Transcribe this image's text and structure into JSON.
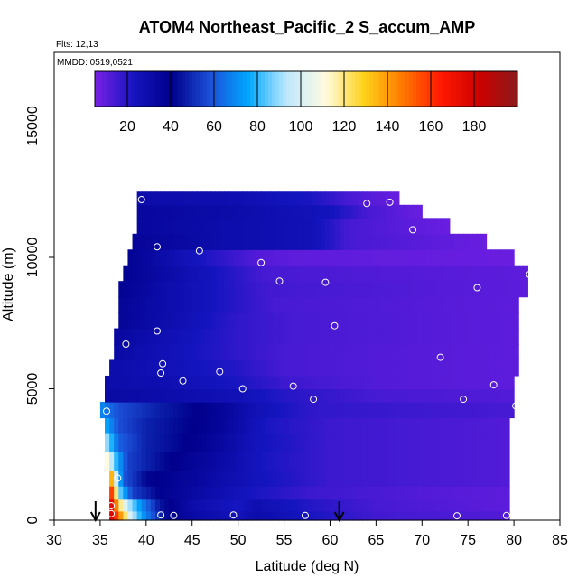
{
  "chart_data": {
    "type": "heatmap",
    "title": "ATOM4 Northeast_Pacific_2 S_accum_AMP",
    "flights_label": "Flts: 12,13",
    "dates_label": "MMDD: 0519,0521",
    "xlabel": "Latitude (deg N)",
    "ylabel": "Altitude (m)",
    "xlim": [
      30,
      85
    ],
    "ylim": [
      0,
      17800
    ],
    "x_ticks": [
      30,
      35,
      40,
      45,
      50,
      55,
      60,
      65,
      70,
      75,
      80,
      85
    ],
    "y_ticks": [
      0,
      5000,
      10000,
      15000
    ],
    "colorbar": {
      "min": 5,
      "max": 200,
      "ticks": [
        20,
        40,
        60,
        80,
        100,
        120,
        140,
        160,
        180
      ],
      "colors": [
        "#7a1fe6",
        "#1515c0",
        "#00008b",
        "#1c4fd8",
        "#00a8ff",
        "#bfe8ff",
        "#fffbe0",
        "#ffd21a",
        "#ff7a00",
        "#ff1a00",
        "#cc0000",
        "#8b1a1a"
      ]
    },
    "field_rows": [
      {
        "alt": [
          0,
          350
        ],
        "lat": [
          36,
          79.5
        ],
        "values": [
          [
            36,
            185
          ],
          [
            36.6,
            165
          ],
          [
            37.4,
            135
          ],
          [
            38.3,
            100
          ],
          [
            39.5,
            75
          ],
          [
            41,
            55
          ],
          [
            42.5,
            40
          ],
          [
            45,
            32
          ],
          [
            50,
            25
          ],
          [
            52,
            30
          ],
          [
            58,
            22
          ],
          [
            65,
            15
          ],
          [
            79.5,
            12
          ]
        ]
      },
      {
        "alt": [
          350,
          800
        ],
        "lat": [
          36,
          79.5
        ],
        "values": [
          [
            36,
            190
          ],
          [
            36.5,
            160
          ],
          [
            37.2,
            120
          ],
          [
            38,
            95
          ],
          [
            39.5,
            70
          ],
          [
            41.5,
            45
          ],
          [
            45,
            30
          ],
          [
            50,
            22
          ],
          [
            52,
            28
          ],
          [
            58,
            20
          ],
          [
            65,
            14
          ],
          [
            79.5,
            10
          ]
        ]
      },
      {
        "alt": [
          800,
          1300
        ],
        "lat": [
          36,
          79.5
        ],
        "values": [
          [
            36,
            175
          ],
          [
            36.5,
            140
          ],
          [
            37.2,
            85
          ],
          [
            38.5,
            55
          ],
          [
            42,
            38
          ],
          [
            48,
            28
          ],
          [
            52,
            22
          ],
          [
            58,
            16
          ],
          [
            70,
            12
          ],
          [
            79.5,
            10
          ]
        ]
      },
      {
        "alt": [
          1300,
          1900
        ],
        "lat": [
          36,
          79.5
        ],
        "values": [
          [
            36,
            160
          ],
          [
            36.5,
            110
          ],
          [
            37.5,
            60
          ],
          [
            40,
            42
          ],
          [
            48,
            30
          ],
          [
            52,
            24
          ],
          [
            60,
            16
          ],
          [
            79.5,
            12
          ]
        ]
      },
      {
        "alt": [
          1900,
          2600
        ],
        "lat": [
          35.5,
          79.5
        ],
        "values": [
          [
            35.5,
            120
          ],
          [
            36.5,
            85
          ],
          [
            38,
            55
          ],
          [
            42,
            42
          ],
          [
            50,
            28
          ],
          [
            53,
            22
          ],
          [
            60,
            16
          ],
          [
            79.5,
            12
          ]
        ]
      },
      {
        "alt": [
          2600,
          3300
        ],
        "lat": [
          35.5,
          79.5
        ],
        "values": [
          [
            35.5,
            95
          ],
          [
            37,
            62
          ],
          [
            40,
            48
          ],
          [
            47,
            36
          ],
          [
            52,
            24
          ],
          [
            60,
            16
          ],
          [
            79.5,
            12
          ]
        ]
      },
      {
        "alt": [
          3300,
          3900
        ],
        "lat": [
          35.5,
          79.5
        ],
        "values": [
          [
            35.5,
            78
          ],
          [
            37,
            58
          ],
          [
            40,
            48
          ],
          [
            48,
            36
          ],
          [
            53,
            22
          ],
          [
            60,
            16
          ],
          [
            79.5,
            12
          ]
        ]
      },
      {
        "alt": [
          3900,
          4500
        ],
        "lat": [
          35,
          80
        ],
        "values": [
          [
            35,
            70
          ],
          [
            37,
            58
          ],
          [
            41,
            48
          ],
          [
            48,
            36
          ],
          [
            52,
            26
          ],
          [
            58,
            18
          ],
          [
            80,
            14
          ]
        ]
      },
      {
        "alt": [
          4500,
          5000
        ],
        "lat": [
          35.5,
          80
        ],
        "values": [
          [
            35.5,
            32
          ],
          [
            42,
            30
          ],
          [
            50,
            26
          ],
          [
            55,
            20
          ],
          [
            65,
            14
          ],
          [
            80,
            12
          ]
        ]
      },
      {
        "alt": [
          5000,
          5500
        ],
        "lat": [
          35.5,
          80
        ],
        "values": [
          [
            35.5,
            30
          ],
          [
            42,
            28
          ],
          [
            50,
            22
          ],
          [
            55,
            16
          ],
          [
            65,
            12
          ],
          [
            80,
            10
          ]
        ]
      },
      {
        "alt": [
          5500,
          6100
        ],
        "lat": [
          36,
          80.5
        ],
        "values": [
          [
            36,
            30
          ],
          [
            42,
            26
          ],
          [
            50,
            20
          ],
          [
            55,
            14
          ],
          [
            65,
            12
          ],
          [
            80.5,
            10
          ]
        ]
      },
      {
        "alt": [
          6100,
          6700
        ],
        "lat": [
          36.5,
          80.5
        ],
        "values": [
          [
            36.5,
            32
          ],
          [
            42,
            26
          ],
          [
            50,
            18
          ],
          [
            55,
            14
          ],
          [
            65,
            12
          ],
          [
            80.5,
            10
          ]
        ]
      },
      {
        "alt": [
          6700,
          7300
        ],
        "lat": [
          36.5,
          80.5
        ],
        "values": [
          [
            36.5,
            34
          ],
          [
            43,
            26
          ],
          [
            50,
            18
          ],
          [
            56,
            14
          ],
          [
            80.5,
            10
          ]
        ]
      },
      {
        "alt": [
          7300,
          7900
        ],
        "lat": [
          37,
          80.5
        ],
        "values": [
          [
            37,
            36
          ],
          [
            43,
            28
          ],
          [
            50,
            18
          ],
          [
            56,
            14
          ],
          [
            80.5,
            10
          ]
        ]
      },
      {
        "alt": [
          7900,
          8500
        ],
        "lat": [
          37,
          80.5
        ],
        "values": [
          [
            37,
            36
          ],
          [
            42,
            30
          ],
          [
            48,
            22
          ],
          [
            54,
            14
          ],
          [
            80.5,
            10
          ]
        ]
      },
      {
        "alt": [
          8500,
          9100
        ],
        "lat": [
          37,
          81.5
        ],
        "values": [
          [
            37,
            38
          ],
          [
            42,
            30
          ],
          [
            48,
            22
          ],
          [
            53,
            15
          ],
          [
            81.5,
            10
          ]
        ]
      },
      {
        "alt": [
          9100,
          9700
        ],
        "lat": [
          37.5,
          81.5
        ],
        "values": [
          [
            37.5,
            38
          ],
          [
            43,
            30
          ],
          [
            48,
            22
          ],
          [
            53,
            14
          ],
          [
            81.5,
            10
          ]
        ]
      },
      {
        "alt": [
          9700,
          10300
        ],
        "lat": [
          38,
          80
        ],
        "values": [
          [
            38,
            38
          ],
          [
            45,
            24
          ],
          [
            52,
            12
          ],
          [
            56,
            10
          ],
          [
            80,
            8
          ]
        ]
      },
      {
        "alt": [
          10300,
          10900
        ],
        "lat": [
          38.5,
          77
        ],
        "values": [
          [
            38.5,
            36
          ],
          [
            48,
            30
          ],
          [
            58,
            26
          ],
          [
            62,
            14
          ],
          [
            77,
            8
          ]
        ]
      },
      {
        "alt": [
          10900,
          11500
        ],
        "lat": [
          39,
          73
        ],
        "values": [
          [
            39,
            34
          ],
          [
            48,
            30
          ],
          [
            58,
            26
          ],
          [
            62,
            14
          ],
          [
            73,
            8
          ]
        ]
      },
      {
        "alt": [
          11500,
          12000
        ],
        "lat": [
          39,
          70
        ],
        "values": [
          [
            39,
            34
          ],
          [
            50,
            30
          ],
          [
            60,
            24
          ],
          [
            64,
            14
          ],
          [
            70,
            8
          ]
        ]
      },
      {
        "alt": [
          12000,
          12500
        ],
        "lat": [
          39,
          67.5
        ],
        "values": [
          [
            39,
            30
          ],
          [
            50,
            28
          ],
          [
            58,
            22
          ],
          [
            62,
            14
          ],
          [
            67.5,
            8
          ]
        ]
      }
    ],
    "sample_points": [
      [
        39.5,
        12200
      ],
      [
        64,
        12050
      ],
      [
        66.5,
        12100
      ],
      [
        69,
        11050
      ],
      [
        41.2,
        10400
      ],
      [
        45.8,
        10250
      ],
      [
        52.5,
        9800
      ],
      [
        54.5,
        9100
      ],
      [
        59.5,
        9050
      ],
      [
        76,
        8850
      ],
      [
        81.7,
        9350
      ],
      [
        41.2,
        7200
      ],
      [
        60.5,
        7400
      ],
      [
        37.8,
        6700
      ],
      [
        41.8,
        5950
      ],
      [
        41.6,
        5600
      ],
      [
        48,
        5650
      ],
      [
        44,
        5300
      ],
      [
        50.5,
        5000
      ],
      [
        56,
        5100
      ],
      [
        72,
        6200
      ],
      [
        77.8,
        5150
      ],
      [
        58.2,
        4600
      ],
      [
        74.5,
        4600
      ],
      [
        80.2,
        4350
      ],
      [
        35.7,
        4150
      ],
      [
        36.9,
        1600
      ],
      [
        36.2,
        550
      ],
      [
        36.2,
        250
      ],
      [
        41.6,
        200
      ],
      [
        43,
        180
      ],
      [
        49.5,
        200
      ],
      [
        57.3,
        180
      ],
      [
        73.8,
        170
      ],
      [
        79.2,
        180
      ]
    ],
    "arrows_lat": [
      34.5,
      61
    ]
  }
}
